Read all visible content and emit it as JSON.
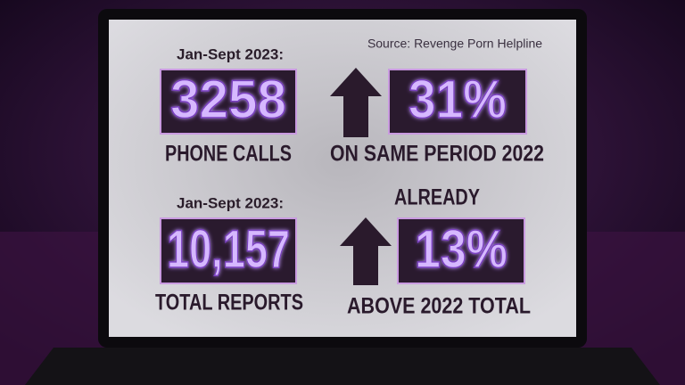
{
  "source": "Source: Revenge Porn Helpline",
  "panels": [
    {
      "period": "Jan-Sept 2023:",
      "value": "3258",
      "label": "PHONE CALLS"
    },
    {
      "value": "31%",
      "label": "ON SAME PERIOD 2022"
    },
    {
      "period": "Jan-Sept 2023:",
      "value": "10,157",
      "label": "TOTAL REPORTS"
    },
    {
      "prefix": "ALREADY",
      "value": "13%",
      "label": "ABOVE 2022 TOTAL"
    }
  ]
}
